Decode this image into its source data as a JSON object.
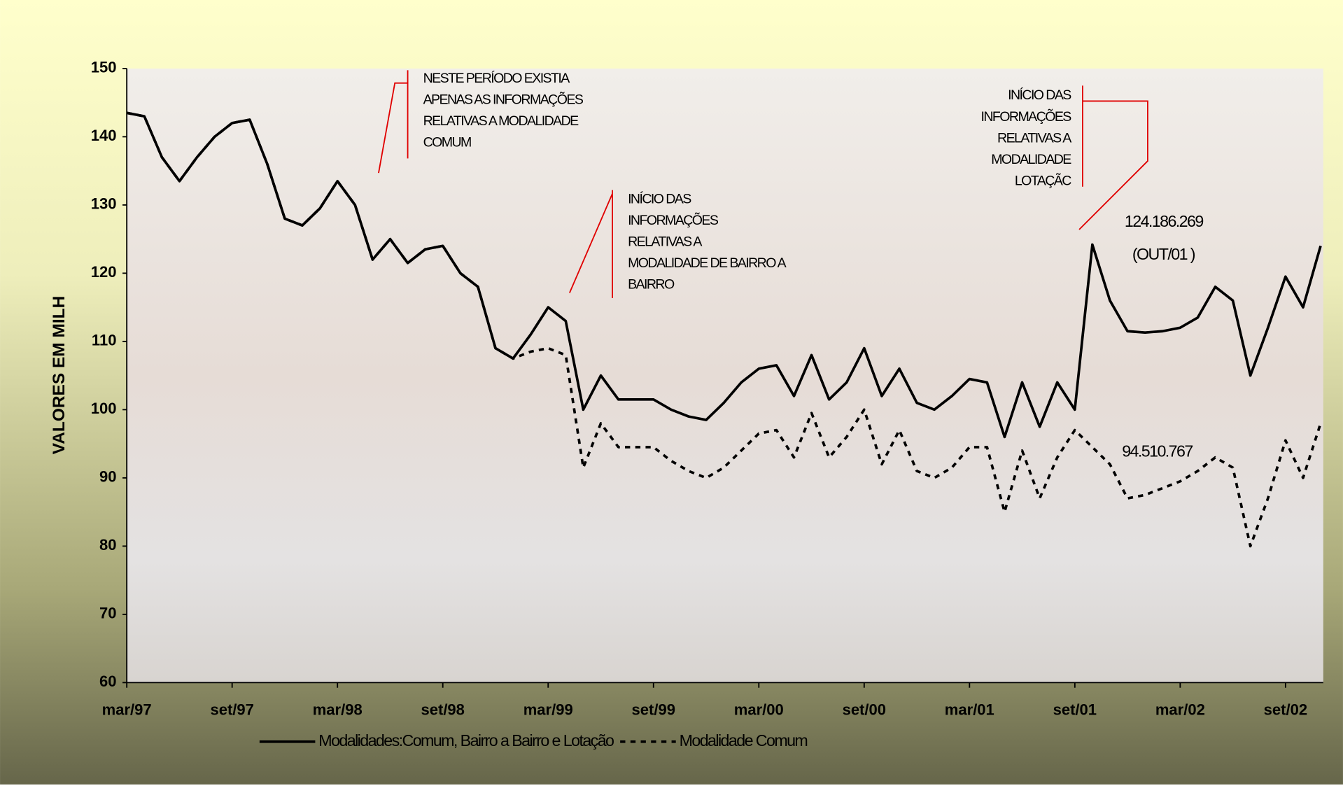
{
  "chart_data": {
    "type": "line",
    "y_label": "VALORES EM MILH",
    "categories": [
      "mar/97",
      null,
      null,
      null,
      null,
      null,
      "set/97",
      null,
      null,
      null,
      null,
      null,
      "mar/98",
      null,
      null,
      null,
      null,
      null,
      "set/98",
      null,
      null,
      null,
      null,
      null,
      "mar/99",
      null,
      null,
      null,
      null,
      null,
      "set/99",
      null,
      null,
      null,
      null,
      null,
      "mar/00",
      null,
      null,
      null,
      null,
      null,
      "set/00",
      null,
      null,
      null,
      null,
      null,
      "mar/01",
      null,
      null,
      null,
      null,
      null,
      "set/01",
      null,
      null,
      null,
      null,
      null,
      "mar/02",
      null,
      null,
      null,
      null,
      null,
      "set/02",
      null,
      null
    ],
    "series": [
      {
        "name": "Modalidades:Comum, Bairro a Bairro e Lotação",
        "color": "#000000",
        "style": "solid",
        "values": [
          143.5,
          143,
          137,
          133.5,
          137,
          140,
          142,
          142.5,
          136,
          128,
          127,
          129.5,
          133.5,
          130,
          122,
          125,
          121.5,
          123.5,
          124,
          120,
          118,
          109,
          107.5,
          111,
          115,
          113,
          100,
          105,
          101.5,
          101.5,
          101.5,
          100,
          99,
          98.5,
          101,
          104,
          106,
          106.5,
          102,
          108,
          101.5,
          104,
          109,
          102,
          106,
          101,
          100,
          102,
          104.5,
          104,
          96,
          104,
          97.5,
          104,
          100,
          124.186269,
          116,
          111.5,
          111.3,
          111.5,
          112,
          113.5,
          118,
          116,
          105,
          112,
          119.5,
          115,
          124
        ],
        "value_labels": [
          null,
          null,
          null,
          null,
          null,
          null,
          null,
          null,
          null,
          null,
          null,
          null,
          null,
          null,
          null,
          null,
          null,
          null,
          null,
          null,
          null,
          null,
          null,
          null,
          null,
          null,
          null,
          null,
          null,
          null,
          null,
          null,
          null,
          null,
          null,
          null,
          null,
          null,
          null,
          null,
          null,
          null,
          null,
          null,
          null,
          null,
          null,
          null,
          null,
          null,
          null,
          null,
          null,
          null,
          null,
          "124.186.269",
          null,
          null,
          null,
          null,
          null,
          null,
          null,
          null,
          null,
          null,
          null,
          null,
          null
        ]
      },
      {
        "name": "Modalidade Comum",
        "color": "#000000",
        "style": "dashed",
        "values": [
          143.5,
          143,
          137,
          133.5,
          137,
          140,
          142,
          142.5,
          136,
          128,
          127,
          129.5,
          133.5,
          130,
          122,
          125,
          121.5,
          123.5,
          124,
          120,
          118,
          109,
          107.5,
          108.5,
          109,
          108,
          91.5,
          98,
          94.5,
          94.5,
          94.5,
          92.5,
          91,
          90,
          91.5,
          94,
          96.5,
          97,
          93,
          99.5,
          93,
          96,
          100,
          92,
          97,
          91,
          90,
          91.5,
          94.5,
          94.5,
          85,
          94,
          87,
          93,
          97,
          94.510767,
          92,
          87,
          87.5,
          88.5,
          89.5,
          91,
          93,
          91.5,
          80,
          87,
          95.5,
          90,
          98
        ],
        "value_labels": [
          null,
          null,
          null,
          null,
          null,
          null,
          null,
          null,
          null,
          null,
          null,
          null,
          null,
          null,
          null,
          null,
          null,
          null,
          null,
          null,
          null,
          null,
          null,
          null,
          null,
          null,
          null,
          null,
          null,
          null,
          null,
          null,
          null,
          null,
          null,
          null,
          null,
          null,
          null,
          null,
          null,
          null,
          null,
          null,
          null,
          null,
          null,
          null,
          null,
          null,
          null,
          null,
          null,
          null,
          null,
          "94.510.767",
          null,
          null,
          null,
          null,
          null,
          null,
          null,
          null,
          null,
          null,
          null,
          null,
          null
        ]
      }
    ],
    "ylim": [
      60,
      150
    ],
    "yticks": [
      60,
      70,
      80,
      90,
      100,
      110,
      120,
      130,
      140,
      150
    ],
    "annotations": [
      {
        "lines": [
          "NESTE PERÍODO EXISTIA",
          "APENAS AS INFORMAÇÕES",
          "RELATIVAS A MODALIDADE",
          "COMUM"
        ]
      },
      {
        "lines": [
          "INÍCIO DAS",
          "INFORMAÇÕES",
          "RELATIVAS A",
          "MODALIDADE DE BAIRRO A",
          "BAIRRO"
        ]
      },
      {
        "lines": [
          "INÍCIO DAS",
          "INFORMAÇÕES",
          "RELATIVAS A",
          "MODALIDADE",
          "LOTAÇÃC"
        ]
      },
      {
        "lines": [
          "(OUT/01 )"
        ]
      }
    ],
    "legend": "bottom"
  }
}
